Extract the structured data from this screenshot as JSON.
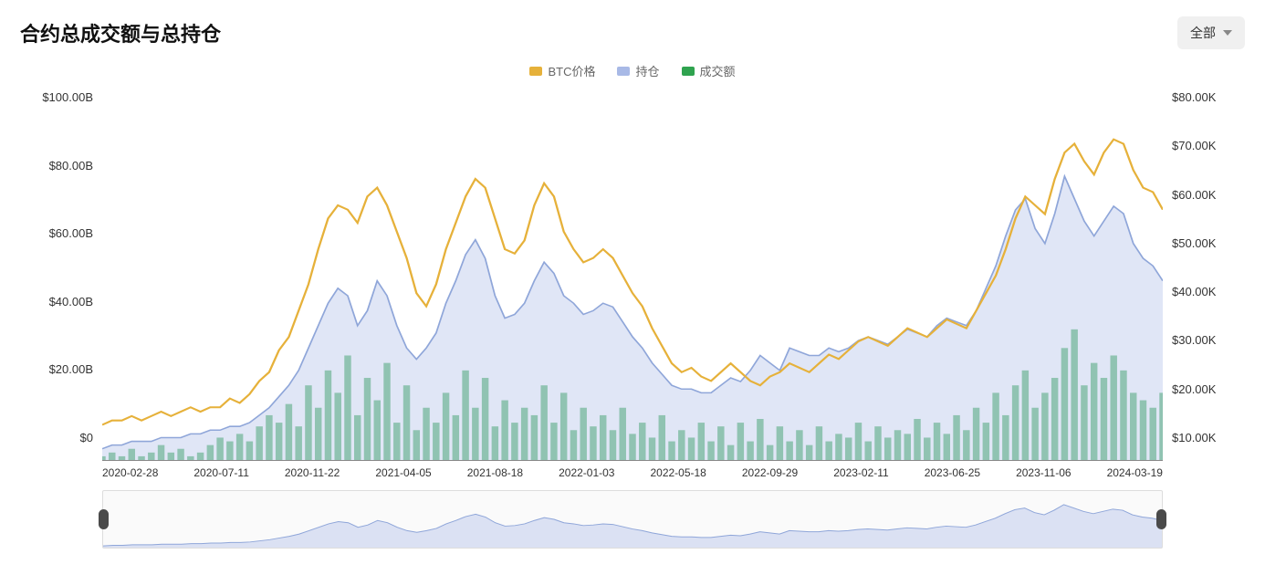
{
  "title": "合约总成交额与总持仓",
  "dropdown": {
    "label": "全部"
  },
  "legend": {
    "btc": {
      "label": "BTC价格",
      "color": "#e6b13a"
    },
    "oi": {
      "label": "持仓",
      "color": "#a8b9e6"
    },
    "vol": {
      "label": "成交额",
      "color": "#2fa34f"
    }
  },
  "chart": {
    "type": "combo-line-area-bar",
    "background_color": "#ffffff",
    "grid_color": "#e8e8e8",
    "axis_color": "#888888",
    "tick_fontsize": 13,
    "x_labels": [
      "2020-02-28",
      "2020-07-11",
      "2020-11-22",
      "2021-04-05",
      "2021-08-18",
      "2022-01-03",
      "2022-05-18",
      "2022-09-29",
      "2023-02-11",
      "2023-06-25",
      "2023-11-06",
      "2024-03-19"
    ],
    "left_axis": {
      "label_prefix": "$",
      "ticks": [
        "$100.00B",
        "$80.00B",
        "$60.00B",
        "$40.00B",
        "$20.00B",
        "$0"
      ],
      "min": 0,
      "max": 100
    },
    "right_axis": {
      "label_prefix": "$",
      "ticks": [
        "$80.00K",
        "$70.00K",
        "$60.00K",
        "$50.00K",
        "$40.00K",
        "$30.00K",
        "$20.00K",
        "$10.00K"
      ],
      "min": 0,
      "max": 85
    },
    "series": {
      "btc_price": {
        "axis": "right",
        "color": "#e6b13a",
        "line_width": 2,
        "values": [
          8,
          9,
          9,
          10,
          9,
          10,
          11,
          10,
          11,
          12,
          11,
          12,
          12,
          14,
          13,
          15,
          18,
          20,
          25,
          28,
          34,
          40,
          48,
          55,
          58,
          57,
          54,
          60,
          62,
          58,
          52,
          46,
          38,
          35,
          40,
          48,
          54,
          60,
          64,
          62,
          55,
          48,
          47,
          50,
          58,
          63,
          60,
          52,
          48,
          45,
          46,
          48,
          46,
          42,
          38,
          35,
          30,
          26,
          22,
          20,
          21,
          19,
          18,
          20,
          22,
          20,
          18,
          17,
          19,
          20,
          22,
          21,
          20,
          22,
          24,
          23,
          25,
          27,
          28,
          27,
          26,
          28,
          30,
          29,
          28,
          30,
          32,
          31,
          30,
          34,
          38,
          42,
          48,
          55,
          60,
          58,
          56,
          64,
          70,
          72,
          68,
          65,
          70,
          73,
          72,
          66,
          62,
          61,
          57
        ]
      },
      "open_interest": {
        "axis": "left",
        "color": "#8fa6d9",
        "fill": "#c6d1ef",
        "fill_opacity": 0.55,
        "line_width": 1.5,
        "values": [
          3,
          4,
          4,
          5,
          5,
          5,
          6,
          6,
          6,
          7,
          7,
          8,
          8,
          9,
          9,
          10,
          12,
          14,
          17,
          20,
          24,
          30,
          36,
          42,
          46,
          44,
          36,
          40,
          48,
          44,
          36,
          30,
          27,
          30,
          34,
          42,
          48,
          55,
          59,
          54,
          44,
          38,
          39,
          42,
          48,
          53,
          50,
          44,
          42,
          39,
          40,
          42,
          41,
          37,
          33,
          30,
          26,
          23,
          20,
          19,
          19,
          18,
          18,
          20,
          22,
          21,
          24,
          28,
          26,
          24,
          30,
          29,
          28,
          28,
          30,
          29,
          30,
          32,
          33,
          32,
          31,
          33,
          35,
          34,
          33,
          36,
          38,
          37,
          36,
          40,
          46,
          52,
          60,
          67,
          70,
          62,
          58,
          66,
          76,
          70,
          64,
          60,
          64,
          68,
          66,
          58,
          54,
          52,
          48
        ]
      },
      "volume": {
        "axis": "left",
        "color": "#2fa34f",
        "type": "bar",
        "values": [
          1,
          2,
          1,
          3,
          1,
          2,
          4,
          2,
          3,
          1,
          2,
          4,
          6,
          5,
          7,
          5,
          9,
          12,
          10,
          15,
          9,
          20,
          14,
          24,
          18,
          28,
          12,
          22,
          16,
          26,
          10,
          20,
          8,
          14,
          10,
          18,
          12,
          24,
          14,
          22,
          9,
          16,
          10,
          14,
          12,
          20,
          10,
          18,
          8,
          14,
          9,
          12,
          8,
          14,
          7,
          10,
          6,
          12,
          5,
          8,
          6,
          10,
          5,
          9,
          4,
          10,
          5,
          11,
          4,
          9,
          5,
          8,
          4,
          9,
          5,
          7,
          6,
          10,
          5,
          9,
          6,
          8,
          7,
          11,
          6,
          10,
          7,
          12,
          8,
          14,
          10,
          18,
          12,
          20,
          24,
          14,
          18,
          22,
          30,
          35,
          20,
          26,
          22,
          28,
          24,
          18,
          16,
          14,
          18
        ]
      }
    }
  },
  "brush": {
    "fill": "#c6d1ef",
    "stroke": "#8fa6d9",
    "handle_color": "#4a4a4a"
  }
}
